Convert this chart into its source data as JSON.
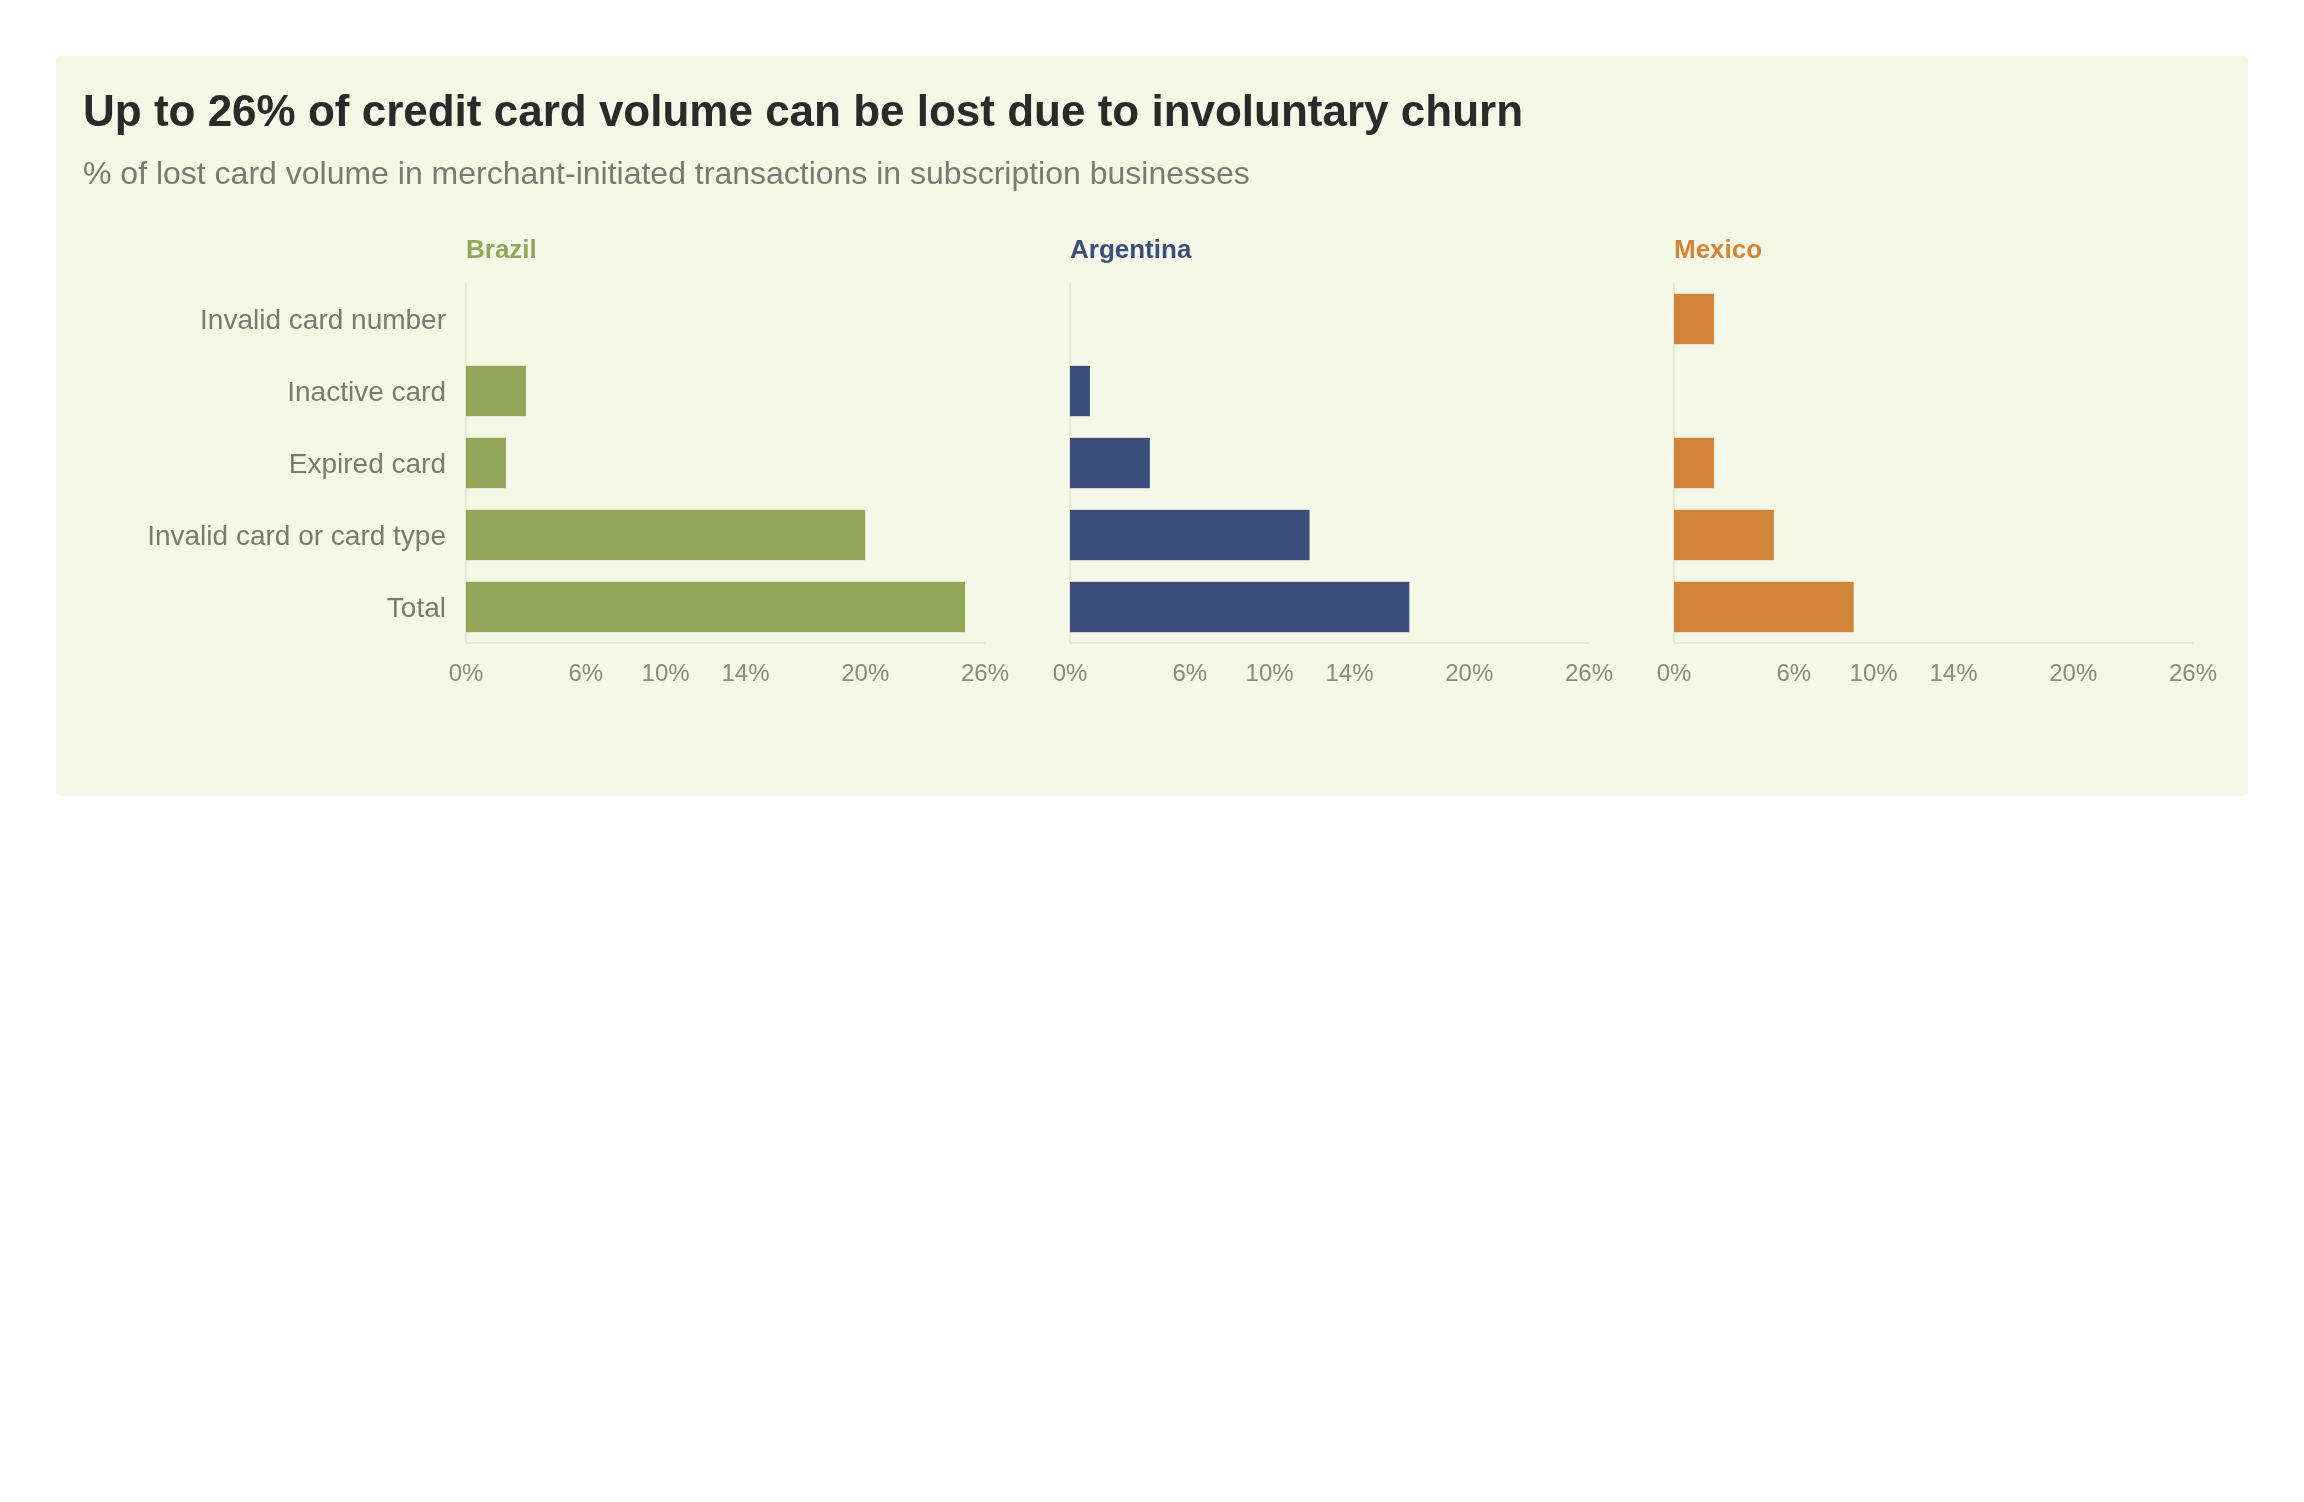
{
  "chart_data": [
    {
      "type": "bar",
      "orientation": "horizontal",
      "title": "Up to 26% of credit card volume can be lost due to involuntary churn",
      "subtitle": "% of lost card volume in merchant-initiated transactions in subscription businesses",
      "categories": [
        "Invalid card number",
        "Inactive card",
        "Expired card",
        "Invalid card or card type",
        "Total"
      ],
      "xlim": [
        0,
        26
      ],
      "xticks": [
        {
          "value": 0,
          "label": "0%"
        },
        {
          "value": 6,
          "label": "6%"
        },
        {
          "value": 10,
          "label": "10%"
        },
        {
          "value": 14,
          "label": "14%"
        },
        {
          "value": 20,
          "label": "20%"
        },
        {
          "value": 26,
          "label": "26%"
        }
      ],
      "grid": false,
      "series": [
        {
          "name": "Brazil",
          "color": "#94a65a",
          "values": [
            null,
            3,
            2,
            20,
            25
          ]
        }
      ]
    },
    {
      "type": "bar",
      "orientation": "horizontal",
      "categories": [
        "Invalid card number",
        "Inactive card",
        "Expired card",
        "Invalid card or card type",
        "Total"
      ],
      "tick_labels": "x",
      "xlim": [
        0,
        26
      ],
      "xticks": [
        {
          "value": 0,
          "label": "0%"
        },
        {
          "value": 6,
          "label": "6%"
        },
        {
          "value": 10,
          "label": "10%"
        },
        {
          "value": 14,
          "label": "14%"
        },
        {
          "value": 20,
          "label": "20%"
        },
        {
          "value": 26,
          "label": "26%"
        }
      ],
      "grid": false,
      "series": [
        {
          "name": "Argentina",
          "color": "#3c4f7c",
          "values": [
            null,
            1,
            4,
            12,
            17
          ]
        }
      ]
    },
    {
      "type": "bar",
      "orientation": "horizontal",
      "categories": [
        "Invalid card number",
        "Inactive card",
        "Expired card",
        "Invalid card or card type",
        "Total"
      ],
      "tick_labels": "x",
      "xlim": [
        0,
        26
      ],
      "xticks": [
        {
          "value": 0,
          "label": "0%"
        },
        {
          "value": 6,
          "label": "6%"
        },
        {
          "value": 10,
          "label": "10%"
        },
        {
          "value": 14,
          "label": "14%"
        },
        {
          "value": 20,
          "label": "20%"
        },
        {
          "value": 26,
          "label": "26%"
        }
      ],
      "grid": false,
      "series": [
        {
          "name": "Mexico",
          "color": "#d2853a",
          "values": [
            2,
            null,
            2,
            5,
            9
          ]
        }
      ]
    }
  ]
}
